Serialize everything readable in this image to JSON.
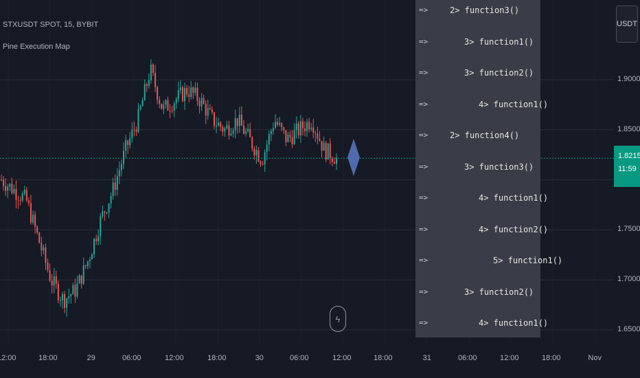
{
  "header": {
    "symbol_line": "STXUSDT SPOT, 15, BYBIT",
    "indicator_name": "Pine Execution Map"
  },
  "currency_button": "USDT",
  "price_scale": {
    "ticks": [
      "1.90000",
      "1.85000",
      "1.75000",
      "1.70000",
      "1.65000"
    ],
    "current_price": "1.82153",
    "countdown": "11:59"
  },
  "time_axis": {
    "ticks": [
      "12:00",
      "18:00",
      "29",
      "06:00",
      "12:00",
      "18:00",
      "30",
      "06:00",
      "12:00",
      "18:00",
      "31",
      "06:00",
      "12:00",
      "18:00",
      "Nov"
    ]
  },
  "execution_map": {
    "rows": [
      {
        "arrow": "=>",
        "label": "2> function3()",
        "depth": 2
      },
      {
        "arrow": "=>",
        "label": "3> function1()",
        "depth": 3
      },
      {
        "arrow": "=>",
        "label": "3> function2()",
        "depth": 3
      },
      {
        "arrow": "=>",
        "label": "4> function1()",
        "depth": 4
      },
      {
        "arrow": "=>",
        "label": "2> function4()",
        "depth": 2
      },
      {
        "arrow": "=>",
        "label": "3> function3()",
        "depth": 3
      },
      {
        "arrow": "=>",
        "label": "4> function1()",
        "depth": 4
      },
      {
        "arrow": "=>",
        "label": "4> function2()",
        "depth": 4
      },
      {
        "arrow": "=>",
        "label": "5> function1()",
        "depth": 5
      },
      {
        "arrow": "=>",
        "label": "3> function2()",
        "depth": 3
      },
      {
        "arrow": "=>",
        "label": "4> function1()",
        "depth": 4
      }
    ]
  },
  "colors": {
    "background": "#161a25",
    "up_candle": "#26a69a",
    "down_candle": "#ef5350",
    "grid": "#2a2e39",
    "marker": "#4f6bad",
    "price_tag": "#089981"
  },
  "icons": {
    "replay": "lightning-bolt-icon",
    "marker": "diamond-marker-icon"
  },
  "chart_data": {
    "type": "candlestick",
    "x_range": [
      "Oct 28 12:00",
      "Oct 29 12:00"
    ],
    "ylim": [
      1.64,
      1.96
    ],
    "y_ticks": [
      1.65,
      1.7,
      1.75,
      1.8,
      1.85,
      1.9
    ],
    "last_price": 1.82153,
    "close_path": [
      1.8,
      1.79,
      1.78,
      1.74,
      1.7,
      1.68,
      1.69,
      1.72,
      1.76,
      1.79,
      1.83,
      1.86,
      1.91,
      1.87,
      1.88,
      1.89,
      1.88,
      1.86,
      1.85,
      1.86,
      1.84,
      1.82,
      1.86,
      1.84,
      1.85,
      1.86,
      1.83,
      1.822
    ]
  }
}
